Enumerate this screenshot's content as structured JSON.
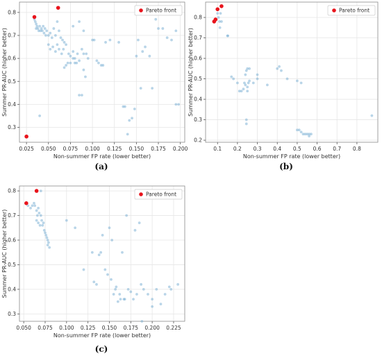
{
  "chart_data": [
    {
      "type": "scatter",
      "caption": "(a)",
      "xlabel": "Non-summer FP rate (lower better)",
      "ylabel": "Summer PR-AUC (higher better)",
      "xlim": [
        0.017,
        0.205
      ],
      "ylim": [
        0.235,
        0.845
      ],
      "xticks": [
        0.025,
        0.05,
        0.075,
        0.1,
        0.125,
        0.15,
        0.175,
        0.2
      ],
      "xtick_labels": [
        "0.025",
        "0.050",
        "0.075",
        "0.100",
        "0.125",
        "0.150",
        "0.175",
        "0.200"
      ],
      "yticks": [
        0.3,
        0.4,
        0.5,
        0.6,
        0.7,
        0.8
      ],
      "ytick_labels": [
        "0.3",
        "0.4",
        "0.5",
        "0.6",
        "0.7",
        "0.8"
      ],
      "grid": true,
      "legend": {
        "position": "top-right",
        "entries": [
          "Pareto front"
        ]
      },
      "colors": {
        "points": "#7fb3d5",
        "pareto": "#e8141c"
      },
      "series": [
        {
          "name": "",
          "points": [
            [
              0.034,
              0.77
            ],
            [
              0.035,
              0.76
            ],
            [
              0.036,
              0.75
            ],
            [
              0.037,
              0.74
            ],
            [
              0.036,
              0.73
            ],
            [
              0.038,
              0.73
            ],
            [
              0.039,
              0.72
            ],
            [
              0.04,
              0.74
            ],
            [
              0.041,
              0.72
            ],
            [
              0.042,
              0.73
            ],
            [
              0.043,
              0.72
            ],
            [
              0.044,
              0.74
            ],
            [
              0.045,
              0.71
            ],
            [
              0.046,
              0.73
            ],
            [
              0.047,
              0.7
            ],
            [
              0.048,
              0.72
            ],
            [
              0.05,
              0.7
            ],
            [
              0.052,
              0.71
            ],
            [
              0.054,
              0.69
            ],
            [
              0.056,
              0.73
            ],
            [
              0.058,
              0.7
            ],
            [
              0.06,
              0.76
            ],
            [
              0.062,
              0.72
            ],
            [
              0.064,
              0.69
            ],
            [
              0.066,
              0.68
            ],
            [
              0.068,
              0.67
            ],
            [
              0.05,
              0.66
            ],
            [
              0.052,
              0.64
            ],
            [
              0.055,
              0.65
            ],
            [
              0.058,
              0.63
            ],
            [
              0.06,
              0.66
            ],
            [
              0.062,
              0.64
            ],
            [
              0.065,
              0.62
            ],
            [
              0.067,
              0.64
            ],
            [
              0.07,
              0.66
            ],
            [
              0.073,
              0.62
            ],
            [
              0.075,
              0.61
            ],
            [
              0.078,
              0.63
            ],
            [
              0.08,
              0.6
            ],
            [
              0.083,
              0.62
            ],
            [
              0.085,
              0.59
            ],
            [
              0.088,
              0.64
            ],
            [
              0.09,
              0.62
            ],
            [
              0.093,
              0.62
            ],
            [
              0.095,
              0.6
            ],
            [
              0.068,
              0.56
            ],
            [
              0.07,
              0.57
            ],
            [
              0.072,
              0.58
            ],
            [
              0.075,
              0.58
            ],
            [
              0.078,
              0.6
            ],
            [
              0.08,
              0.58
            ],
            [
              0.082,
              0.58
            ],
            [
              0.09,
              0.55
            ],
            [
              0.092,
              0.52
            ],
            [
              0.1,
              0.68
            ],
            [
              0.102,
              0.68
            ],
            [
              0.105,
              0.59
            ],
            [
              0.107,
              0.58
            ],
            [
              0.11,
              0.57
            ],
            [
              0.112,
              0.57
            ],
            [
              0.115,
              0.67
            ],
            [
              0.12,
              0.68
            ],
            [
              0.13,
              0.67
            ],
            [
              0.078,
              0.74
            ],
            [
              0.085,
              0.76
            ],
            [
              0.09,
              0.72
            ],
            [
              0.135,
              0.39
            ],
            [
              0.137,
              0.39
            ],
            [
              0.14,
              0.27
            ],
            [
              0.142,
              0.33
            ],
            [
              0.145,
              0.34
            ],
            [
              0.148,
              0.38
            ],
            [
              0.15,
              0.61
            ],
            [
              0.152,
              0.68
            ],
            [
              0.155,
              0.47
            ],
            [
              0.157,
              0.63
            ],
            [
              0.16,
              0.65
            ],
            [
              0.165,
              0.61
            ],
            [
              0.168,
              0.47
            ],
            [
              0.172,
              0.77
            ],
            [
              0.175,
              0.73
            ],
            [
              0.18,
              0.73
            ],
            [
              0.185,
              0.69
            ],
            [
              0.19,
              0.68
            ],
            [
              0.195,
              0.72
            ],
            [
              0.195,
              0.4
            ],
            [
              0.198,
              0.4
            ],
            [
              0.085,
              0.44
            ],
            [
              0.088,
              0.44
            ],
            [
              0.04,
              0.35
            ]
          ]
        },
        {
          "name": "Pareto front",
          "points": [
            [
              0.025,
              0.26
            ],
            [
              0.034,
              0.78
            ],
            [
              0.061,
              0.82
            ]
          ]
        }
      ]
    },
    {
      "type": "scatter",
      "caption": "(b)",
      "xlabel": "Non-summer FP rate (lower better)",
      "ylabel": "Summer PR-AUC (higher better)",
      "xlim": [
        0.04,
        0.905
      ],
      "ylim": [
        0.19,
        0.875
      ],
      "xticks": [
        0.1,
        0.2,
        0.3,
        0.4,
        0.5,
        0.6,
        0.7,
        0.8
      ],
      "xtick_labels": [
        "0.1",
        "0.2",
        "0.3",
        "0.4",
        "0.5",
        "0.6",
        "0.7",
        "0.8"
      ],
      "yticks": [
        0.2,
        0.3,
        0.4,
        0.5,
        0.6,
        0.7,
        0.8
      ],
      "ytick_labels": [
        "0.2",
        "0.3",
        "0.4",
        "0.5",
        "0.6",
        "0.7",
        "0.8"
      ],
      "grid": true,
      "legend": {
        "position": "top-right",
        "entries": [
          "Pareto front"
        ]
      },
      "colors": {
        "points": "#7fb3d5",
        "pareto": "#e8141c"
      },
      "series": [
        {
          "name": "",
          "points": [
            [
              0.1,
              0.82
            ],
            [
              0.105,
              0.8
            ],
            [
              0.11,
              0.78
            ],
            [
              0.112,
              0.75
            ],
            [
              0.115,
              0.82
            ],
            [
              0.12,
              0.78
            ],
            [
              0.15,
              0.71
            ],
            [
              0.152,
              0.71
            ],
            [
              0.17,
              0.51
            ],
            [
              0.18,
              0.5
            ],
            [
              0.2,
              0.48
            ],
            [
              0.21,
              0.44
            ],
            [
              0.22,
              0.44
            ],
            [
              0.23,
              0.45
            ],
            [
              0.235,
              0.48
            ],
            [
              0.24,
              0.47
            ],
            [
              0.24,
              0.52
            ],
            [
              0.245,
              0.54
            ],
            [
              0.25,
              0.55
            ],
            [
              0.25,
              0.46
            ],
            [
              0.25,
              0.44
            ],
            [
              0.255,
              0.48
            ],
            [
              0.26,
              0.49
            ],
            [
              0.26,
              0.55
            ],
            [
              0.245,
              0.3
            ],
            [
              0.245,
              0.28
            ],
            [
              0.28,
              0.48
            ],
            [
              0.3,
              0.5
            ],
            [
              0.3,
              0.52
            ],
            [
              0.35,
              0.47
            ],
            [
              0.4,
              0.55
            ],
            [
              0.41,
              0.56
            ],
            [
              0.42,
              0.54
            ],
            [
              0.45,
              0.5
            ],
            [
              0.5,
              0.49
            ],
            [
              0.52,
              0.48
            ],
            [
              0.5,
              0.25
            ],
            [
              0.51,
              0.25
            ],
            [
              0.52,
              0.24
            ],
            [
              0.53,
              0.23
            ],
            [
              0.54,
              0.23
            ],
            [
              0.55,
              0.23
            ],
            [
              0.56,
              0.22
            ],
            [
              0.56,
              0.23
            ],
            [
              0.57,
              0.23
            ],
            [
              0.875,
              0.32
            ]
          ]
        },
        {
          "name": "Pareto front",
          "points": [
            [
              0.083,
              0.78
            ],
            [
              0.09,
              0.79
            ],
            [
              0.1,
              0.84
            ],
            [
              0.12,
              0.855
            ]
          ]
        }
      ]
    },
    {
      "type": "scatter",
      "caption": "(c)",
      "xlabel": "Non-summer FP rate (lower better)",
      "ylabel": "Summer PR-AUC (higher better)",
      "xlim": [
        0.045,
        0.238
      ],
      "ylim": [
        0.27,
        0.82
      ],
      "xticks": [
        0.05,
        0.075,
        0.1,
        0.125,
        0.15,
        0.175,
        0.2,
        0.225
      ],
      "xtick_labels": [
        "0.050",
        "0.075",
        "0.100",
        "0.125",
        "0.150",
        "0.175",
        "0.200",
        "0.225"
      ],
      "yticks": [
        0.3,
        0.4,
        0.5,
        0.6,
        0.7,
        0.8
      ],
      "ytick_labels": [
        "0.3",
        "0.4",
        "0.5",
        "0.6",
        "0.7",
        "0.8"
      ],
      "grid": true,
      "legend": {
        "position": "top-right",
        "entries": [
          "Pareto front"
        ]
      },
      "colors": {
        "points": "#7fb3d5",
        "pareto": "#e8141c"
      },
      "series": [
        {
          "name": "",
          "points": [
            [
              0.055,
              0.74
            ],
            [
              0.058,
              0.73
            ],
            [
              0.06,
              0.74
            ],
            [
              0.062,
              0.75
            ],
            [
              0.063,
              0.74
            ],
            [
              0.065,
              0.72
            ],
            [
              0.066,
              0.7
            ],
            [
              0.067,
              0.73
            ],
            [
              0.068,
              0.71
            ],
            [
              0.07,
              0.7
            ],
            [
              0.071,
              0.68
            ],
            [
              0.072,
              0.66
            ],
            [
              0.073,
              0.67
            ],
            [
              0.074,
              0.64
            ],
            [
              0.075,
              0.63
            ],
            [
              0.076,
              0.62
            ],
            [
              0.077,
              0.61
            ],
            [
              0.078,
              0.6
            ],
            [
              0.078,
              0.58
            ],
            [
              0.079,
              0.59
            ],
            [
              0.08,
              0.57
            ],
            [
              0.065,
              0.68
            ],
            [
              0.067,
              0.67
            ],
            [
              0.069,
              0.66
            ],
            [
              0.07,
              0.8
            ],
            [
              0.1,
              0.68
            ],
            [
              0.11,
              0.65
            ],
            [
              0.12,
              0.48
            ],
            [
              0.13,
              0.55
            ],
            [
              0.132,
              0.43
            ],
            [
              0.135,
              0.42
            ],
            [
              0.138,
              0.54
            ],
            [
              0.14,
              0.55
            ],
            [
              0.142,
              0.62
            ],
            [
              0.145,
              0.48
            ],
            [
              0.148,
              0.46
            ],
            [
              0.15,
              0.65
            ],
            [
              0.152,
              0.44
            ],
            [
              0.153,
              0.6
            ],
            [
              0.155,
              0.38
            ],
            [
              0.157,
              0.4
            ],
            [
              0.158,
              0.41
            ],
            [
              0.16,
              0.35
            ],
            [
              0.162,
              0.38
            ],
            [
              0.163,
              0.36
            ],
            [
              0.165,
              0.55
            ],
            [
              0.167,
              0.36
            ],
            [
              0.168,
              0.36
            ],
            [
              0.17,
              0.7
            ],
            [
              0.172,
              0.4
            ],
            [
              0.175,
              0.39
            ],
            [
              0.178,
              0.36
            ],
            [
              0.18,
              0.64
            ],
            [
              0.182,
              0.38
            ],
            [
              0.185,
              0.67
            ],
            [
              0.187,
              0.42
            ],
            [
              0.19,
              0.4
            ],
            [
              0.195,
              0.38
            ],
            [
              0.2,
              0.36
            ],
            [
              0.2,
              0.33
            ],
            [
              0.205,
              0.4
            ],
            [
              0.21,
              0.34
            ],
            [
              0.215,
              0.38
            ],
            [
              0.22,
              0.41
            ],
            [
              0.222,
              0.4
            ],
            [
              0.23,
              0.42
            ],
            [
              0.188,
              0.27
            ]
          ]
        },
        {
          "name": "Pareto front",
          "points": [
            [
              0.053,
              0.75
            ],
            [
              0.065,
              0.8
            ]
          ]
        }
      ]
    }
  ]
}
